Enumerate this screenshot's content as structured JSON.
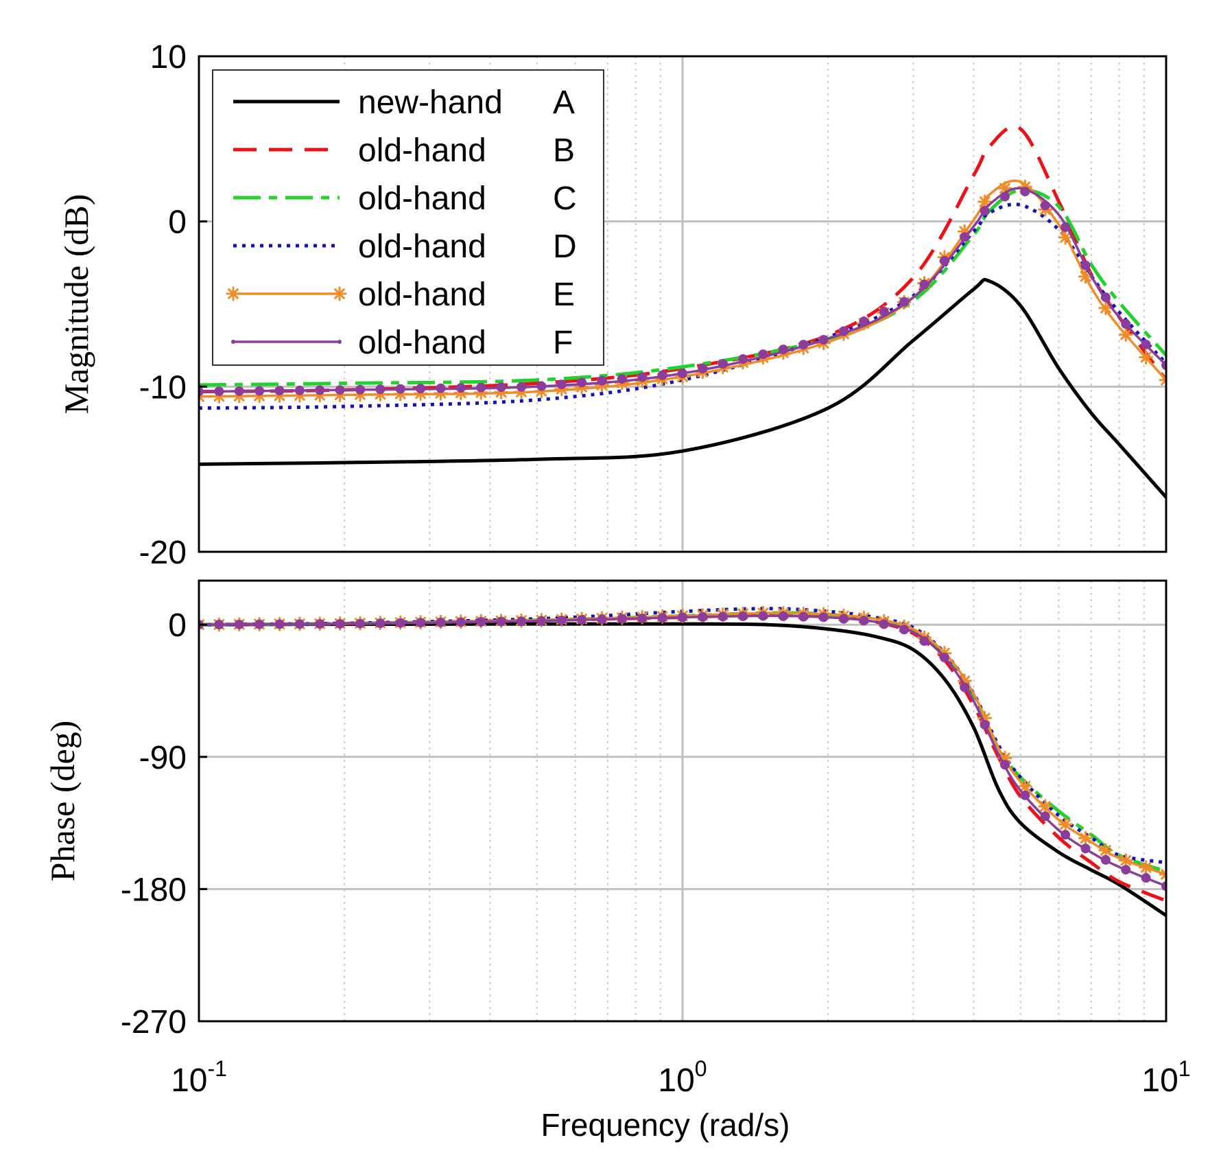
{
  "chart_data": [
    {
      "type": "line",
      "panel": "magnitude",
      "xscale": "log",
      "xlim": [
        0.1,
        10
      ],
      "ylim": [
        -20,
        10
      ],
      "yticks": [
        "10",
        "0",
        "-10",
        "-20"
      ],
      "ytick_values": [
        10,
        0,
        -10,
        -20
      ],
      "ylabel": "Magnitude (dB)",
      "grid": true,
      "legend_position": "top-left",
      "x": [
        0.1,
        0.2,
        0.5,
        1,
        2,
        3,
        4,
        4.3,
        5,
        6,
        7,
        8,
        10
      ],
      "series": [
        {
          "key": "A",
          "name": "new-hand A",
          "color": "#000000",
          "style": "solid",
          "values": [
            -14.7,
            -14.6,
            -14.4,
            -13.9,
            -11.3,
            -7.2,
            -4.1,
            -3.6,
            -5.1,
            -8.9,
            -11.6,
            -13.5,
            -16.7
          ]
        },
        {
          "key": "B",
          "name": "old-hand B",
          "color": "#e8141a",
          "style": "dashed",
          "values": [
            -10.3,
            -10.2,
            -9.8,
            -8.9,
            -6.9,
            -3.4,
            2.8,
            4.5,
            5.6,
            1.2,
            -3.2,
            -5.8,
            -9.6
          ]
        },
        {
          "key": "C",
          "name": "old-hand C",
          "color": "#22d12e",
          "style": "dashdot",
          "values": [
            -9.9,
            -9.8,
            -9.6,
            -8.8,
            -7.1,
            -4.8,
            -0.8,
            0.6,
            1.9,
            0.9,
            -2.6,
            -4.9,
            -8.1
          ]
        },
        {
          "key": "D",
          "name": "old-hand D",
          "color": "#1414b4",
          "style": "dotted",
          "values": [
            -11.3,
            -11.2,
            -10.8,
            -9.6,
            -7.0,
            -4.5,
            -0.6,
            0.5,
            1.0,
            -0.5,
            -3.3,
            -5.5,
            -8.6
          ]
        },
        {
          "key": "E",
          "name": "old-hand E",
          "color": "#f08c28",
          "style": "solid-star",
          "values": [
            -10.6,
            -10.5,
            -10.3,
            -9.4,
            -7.3,
            -4.6,
            0.1,
            1.6,
            2.4,
            -0.2,
            -4.0,
            -6.4,
            -9.6
          ]
        },
        {
          "key": "F",
          "name": "old-hand F",
          "color": "#8c3c9b",
          "style": "solid-dot",
          "values": [
            -10.3,
            -10.2,
            -10.0,
            -9.2,
            -7.1,
            -4.6,
            -0.3,
            1.0,
            2.0,
            0.4,
            -3.3,
            -5.8,
            -8.7
          ]
        }
      ]
    },
    {
      "type": "line",
      "panel": "phase",
      "xscale": "log",
      "xlim": [
        0.1,
        10
      ],
      "ylim": [
        -270,
        30
      ],
      "yticks": [
        "0",
        "-90",
        "-180",
        "-270"
      ],
      "ytick_values": [
        0,
        -90,
        -180,
        -270
      ],
      "ylabel": "Phase (deg)",
      "xlabel": "Frequency  (rad/s)",
      "grid": true,
      "x": [
        0.1,
        0.2,
        0.5,
        1,
        1.5,
        2,
        2.5,
        3,
        3.5,
        4,
        4.5,
        5,
        6,
        7,
        8,
        10
      ],
      "series": [
        {
          "key": "A",
          "color": "#000000",
          "style": "solid",
          "values": [
            0,
            0.3,
            0.5,
            0.5,
            0,
            -3,
            -8,
            -17,
            -38,
            -70,
            -112,
            -135,
            -155,
            -167,
            -177,
            -198
          ]
        },
        {
          "key": "B",
          "color": "#e8141a",
          "style": "dashed",
          "values": [
            0,
            0.8,
            3,
            5,
            7,
            6,
            2,
            -6,
            -25,
            -55,
            -90,
            -117,
            -145,
            -162,
            -175,
            -188
          ]
        },
        {
          "key": "C",
          "color": "#22d12e",
          "style": "dashdot",
          "values": [
            0,
            0.8,
            3,
            6,
            8,
            7,
            3,
            -4,
            -22,
            -48,
            -84,
            -104,
            -127,
            -143,
            -157,
            -168
          ]
        },
        {
          "key": "D",
          "color": "#1414b4",
          "style": "dotted",
          "values": [
            0,
            1,
            4,
            9,
            11,
            9,
            5,
            -2,
            -20,
            -47,
            -82,
            -104,
            -130,
            -145,
            -157,
            -162
          ]
        },
        {
          "key": "E",
          "color": "#f08c28",
          "style": "solid-star",
          "values": [
            0,
            0.8,
            3,
            6,
            8,
            7,
            4,
            -3,
            -20,
            -47,
            -84,
            -107,
            -133,
            -148,
            -159,
            -170
          ]
        },
        {
          "key": "F",
          "color": "#8c3c9b",
          "style": "solid-dot",
          "values": [
            0,
            0.6,
            2.5,
            5,
            6,
            5,
            2,
            -5,
            -23,
            -52,
            -88,
            -113,
            -140,
            -155,
            -165,
            -178
          ]
        }
      ]
    }
  ],
  "xticks": [
    {
      "base": "10",
      "exp": "-1",
      "value": 0.1
    },
    {
      "base": "10",
      "exp": "0",
      "value": 1
    },
    {
      "base": "10",
      "exp": "1",
      "value": 10
    }
  ]
}
